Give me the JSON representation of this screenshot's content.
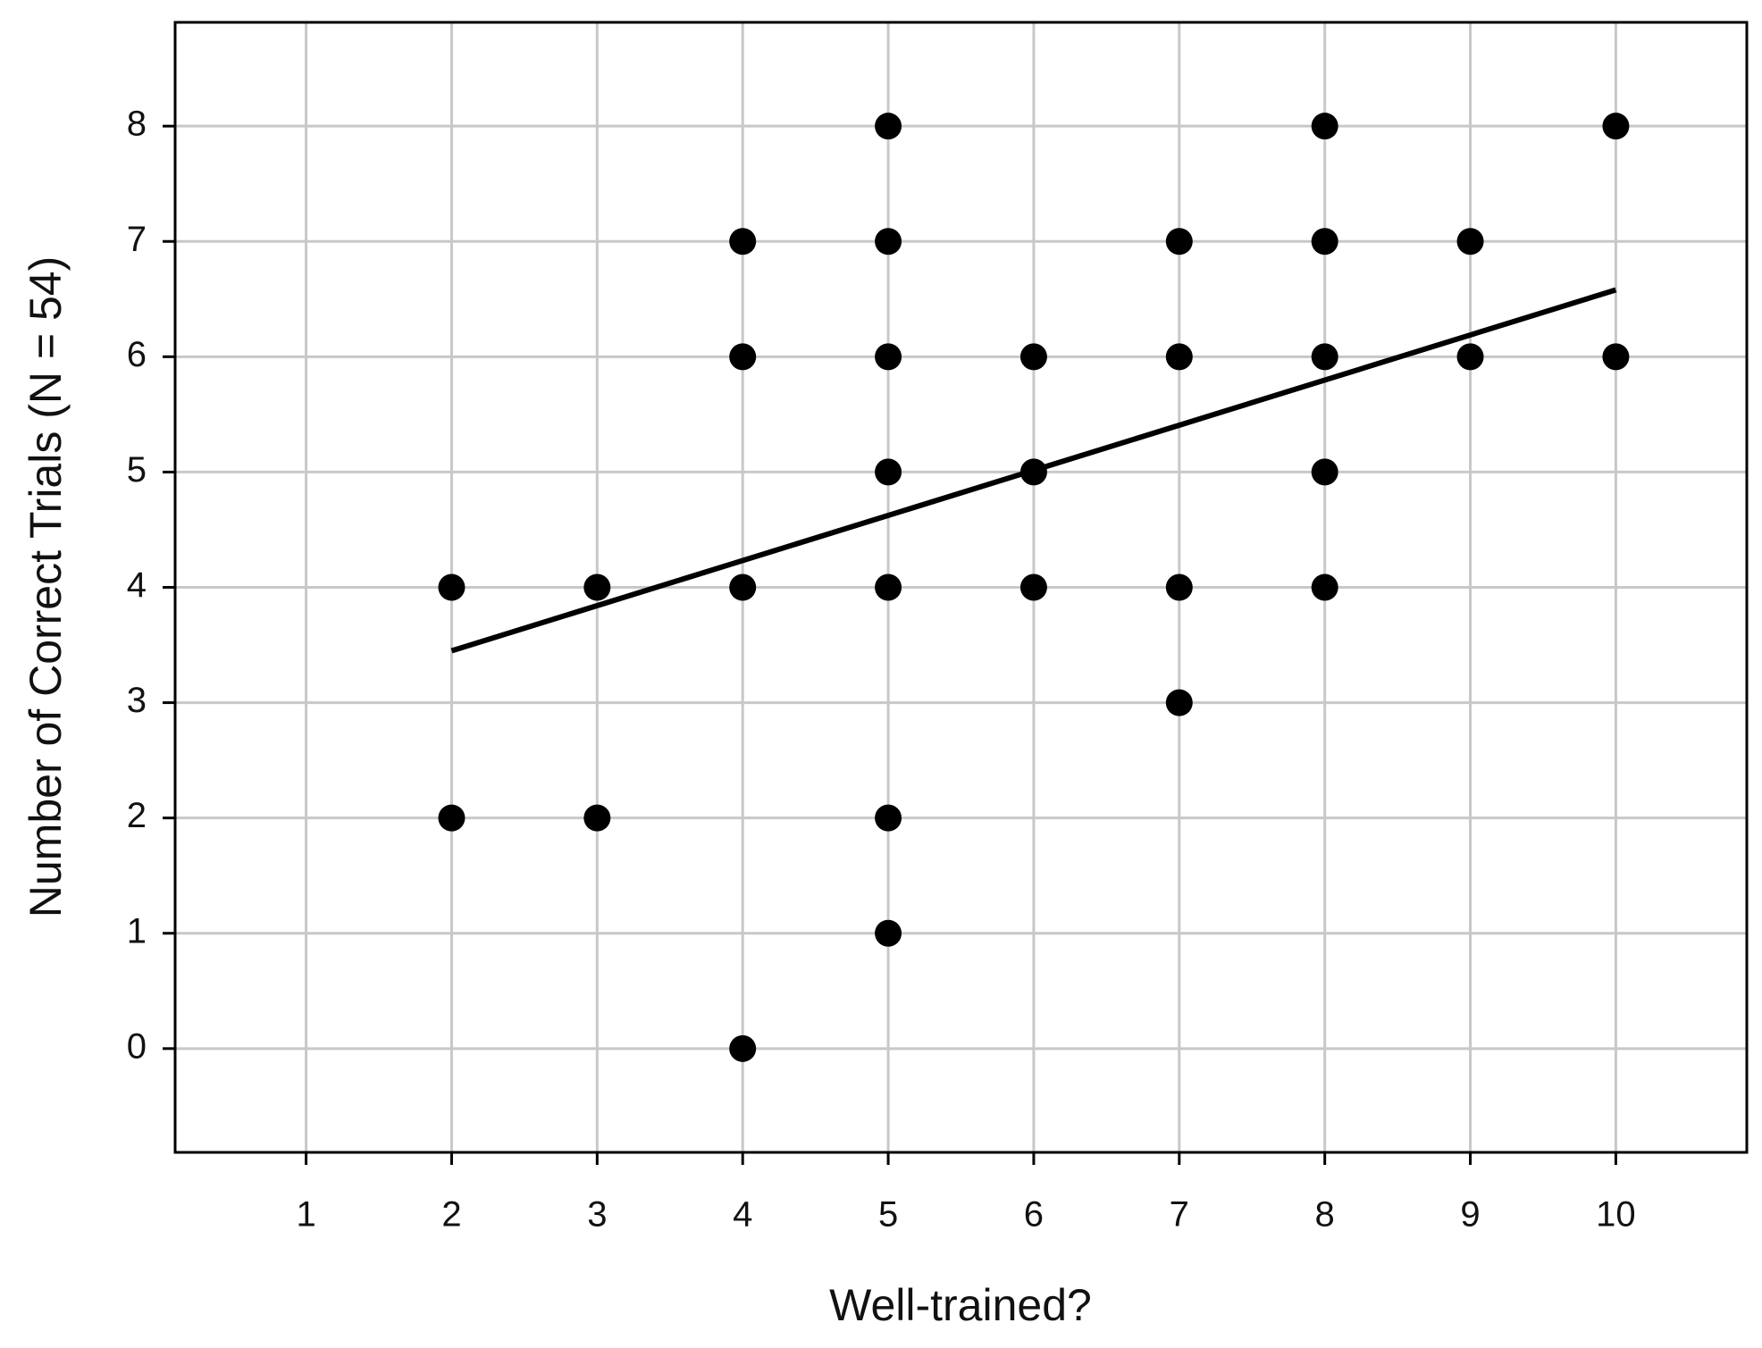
{
  "chart_data": {
    "type": "scatter",
    "xlabel": "Well-trained?",
    "ylabel": "Number of Correct Trials (N = 54)",
    "x": [
      2,
      2,
      3,
      3,
      4,
      4,
      4,
      4,
      5,
      5,
      5,
      5,
      5,
      5,
      5,
      6,
      6,
      6,
      7,
      7,
      7,
      7,
      8,
      8,
      8,
      8,
      8,
      9,
      9,
      10,
      10
    ],
    "values": [
      4,
      2,
      4,
      2,
      7,
      6,
      4,
      0,
      8,
      7,
      6,
      5,
      4,
      2,
      1,
      6,
      5,
      4,
      7,
      6,
      4,
      3,
      8,
      7,
      6,
      5,
      4,
      7,
      6,
      8,
      6
    ],
    "color": "#000000",
    "trendline": {
      "x": [
        2,
        10
      ],
      "values": [
        3.45,
        6.58
      ],
      "color": "#000000"
    },
    "xlim": [
      0.1,
      10.9
    ],
    "ylim": [
      -0.9,
      8.9
    ],
    "xticks": [
      1,
      2,
      3,
      4,
      5,
      6,
      7,
      8,
      9,
      10
    ],
    "yticks": [
      0,
      1,
      2,
      3,
      4,
      5,
      6,
      7,
      8
    ],
    "grid": true
  }
}
